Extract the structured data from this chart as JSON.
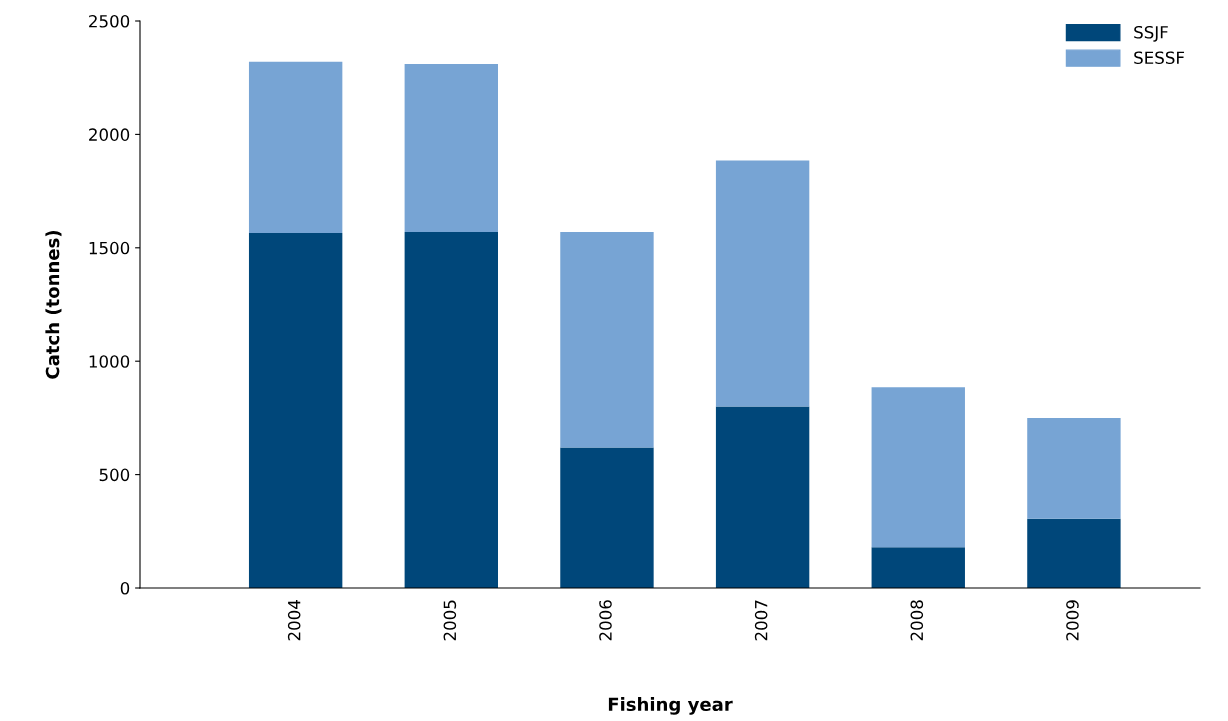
{
  "chart_data": {
    "type": "bar",
    "stacked": true,
    "xlabel": "Fishing year",
    "ylabel": "Catch (tonnes)",
    "categories": [
      "2004",
      "2005",
      "2006",
      "2007",
      "2008",
      "2009"
    ],
    "series": [
      {
        "name": "SSJF",
        "color": "#00477a",
        "values": [
          1565,
          1570,
          620,
          800,
          180,
          305
        ]
      },
      {
        "name": "SESSF",
        "color": "#77a4d4",
        "values": [
          755,
          740,
          950,
          1085,
          705,
          445
        ]
      }
    ],
    "ylim": [
      0,
      2500
    ],
    "yticks": [
      0,
      500,
      1000,
      1500,
      2000,
      2500
    ],
    "grid": false,
    "legend": "top right"
  }
}
